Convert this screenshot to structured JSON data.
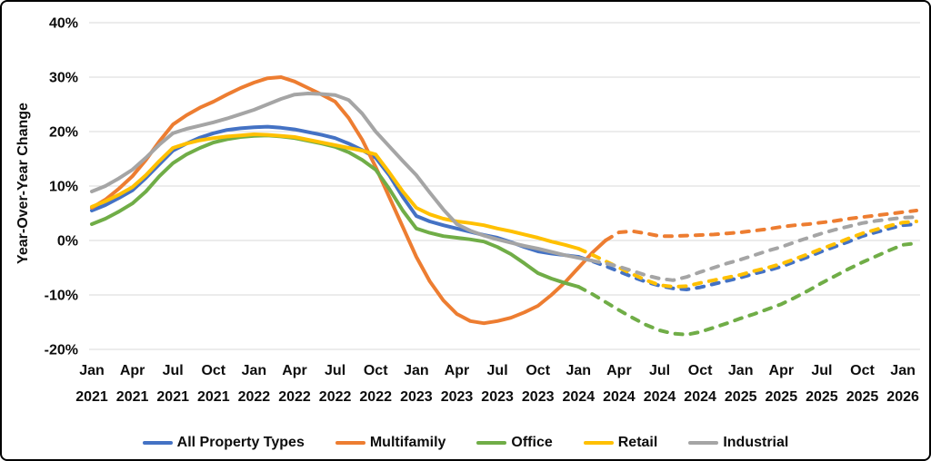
{
  "chart_data": {
    "type": "line",
    "title": "",
    "ylabel": "Year-Over-Year Change",
    "ylim": [
      -20,
      40
    ],
    "grid": "horizontal-only",
    "legend_position": "bottom",
    "ytick_values": [
      40,
      30,
      20,
      10,
      0,
      -10,
      -20
    ],
    "ytick_labels": [
      "40%",
      "30%",
      "20%",
      "10%",
      "0%",
      "-10%",
      "-20%"
    ],
    "xticks": [
      {
        "month": "Jan",
        "year": "2021"
      },
      {
        "month": "Apr",
        "year": "2021"
      },
      {
        "month": "Jul",
        "year": "2021"
      },
      {
        "month": "Oct",
        "year": "2021"
      },
      {
        "month": "Jan",
        "year": "2022"
      },
      {
        "month": "Apr",
        "year": "2022"
      },
      {
        "month": "Jul",
        "year": "2022"
      },
      {
        "month": "Oct",
        "year": "2022"
      },
      {
        "month": "Jan",
        "year": "2023"
      },
      {
        "month": "Apr",
        "year": "2023"
      },
      {
        "month": "Jul",
        "year": "2023"
      },
      {
        "month": "Oct",
        "year": "2023"
      },
      {
        "month": "Jan",
        "year": "2024"
      },
      {
        "month": "Apr",
        "year": "2024"
      },
      {
        "month": "Jul",
        "year": "2024"
      },
      {
        "month": "Oct",
        "year": "2024"
      },
      {
        "month": "Jan",
        "year": "2025"
      },
      {
        "month": "Apr",
        "year": "2025"
      },
      {
        "month": "Jul",
        "year": "2025"
      },
      {
        "month": "Oct",
        "year": "2025"
      },
      {
        "month": "Jan",
        "year": "2026"
      }
    ],
    "x": [
      "2021-01",
      "2021-02",
      "2021-03",
      "2021-04",
      "2021-05",
      "2021-06",
      "2021-07",
      "2021-08",
      "2021-09",
      "2021-10",
      "2021-11",
      "2021-12",
      "2022-01",
      "2022-02",
      "2022-03",
      "2022-04",
      "2022-05",
      "2022-06",
      "2022-07",
      "2022-08",
      "2022-09",
      "2022-10",
      "2022-11",
      "2022-12",
      "2023-01",
      "2023-02",
      "2023-03",
      "2023-04",
      "2023-05",
      "2023-06",
      "2023-07",
      "2023-08",
      "2023-09",
      "2023-10",
      "2023-11",
      "2023-12",
      "2024-01",
      "2024-02",
      "2024-03",
      "2024-04",
      "2024-05",
      "2024-06",
      "2024-07",
      "2024-08",
      "2024-09",
      "2024-10",
      "2024-11",
      "2024-12",
      "2025-01",
      "2025-02",
      "2025-03",
      "2025-04",
      "2025-05",
      "2025-06",
      "2025-07",
      "2025-08",
      "2025-09",
      "2025-10",
      "2025-11",
      "2025-12",
      "2026-01",
      "2026-02"
    ],
    "series": [
      {
        "name": "All Property Types",
        "color": "#4472C4",
        "solid_until_index": 36,
        "values": [
          5.5,
          6.5,
          7.8,
          9.2,
          11.5,
          14,
          16.5,
          17.8,
          18.9,
          19.7,
          20.3,
          20.6,
          20.8,
          20.9,
          20.7,
          20.4,
          19.9,
          19.4,
          18.8,
          17.8,
          16.6,
          15.2,
          12,
          8,
          4.5,
          3.5,
          2.8,
          2.2,
          1.6,
          1,
          0.5,
          -0.3,
          -1.2,
          -2,
          -2.4,
          -2.7,
          -3,
          -3.8,
          -4.7,
          -5.7,
          -6.7,
          -7.6,
          -8.3,
          -8.8,
          -9,
          -8.6,
          -8,
          -7.4,
          -6.8,
          -6.1,
          -5.5,
          -4.8,
          -3.9,
          -3,
          -2,
          -1.1,
          -0.2,
          0.8,
          1.5,
          2.2,
          2.8,
          3
        ]
      },
      {
        "name": "Multifamily",
        "color": "#ED7D31",
        "solid_until_index": 38,
        "values": [
          6,
          7.5,
          9.5,
          11.8,
          14.8,
          18.2,
          21.3,
          23,
          24.4,
          25.5,
          26.8,
          28,
          29,
          29.8,
          30,
          29.2,
          28,
          26.8,
          25.5,
          22.5,
          18.5,
          13.5,
          8,
          2.5,
          -3,
          -7.5,
          -11,
          -13.5,
          -14.8,
          -15.2,
          -14.8,
          -14.2,
          -13.2,
          -12,
          -10,
          -7.7,
          -5,
          -2.3,
          0,
          1.5,
          1.7,
          1.3,
          0.8,
          0.8,
          0.9,
          1,
          1.1,
          1.3,
          1.5,
          1.8,
          2.1,
          2.5,
          2.8,
          3,
          3.3,
          3.6,
          4,
          4.3,
          4.6,
          4.9,
          5.2,
          5.5
        ]
      },
      {
        "name": "Office",
        "color": "#70AD47",
        "solid_until_index": 36,
        "values": [
          3,
          4,
          5.3,
          6.8,
          9,
          11.8,
          14.2,
          15.8,
          17,
          18,
          18.6,
          19,
          19.2,
          19.3,
          19.1,
          18.8,
          18.3,
          17.8,
          17.2,
          16.2,
          14.8,
          13,
          9.5,
          5.5,
          2.2,
          1.4,
          0.8,
          0.5,
          0.2,
          -0.2,
          -1.2,
          -2.5,
          -4.2,
          -6,
          -7,
          -7.8,
          -8.5,
          -9.8,
          -11.3,
          -12.8,
          -14.2,
          -15.5,
          -16.5,
          -17.1,
          -17.3,
          -16.8,
          -16,
          -15.2,
          -14.3,
          -13.5,
          -12.6,
          -11.7,
          -10.5,
          -9.2,
          -7.8,
          -6.5,
          -5.2,
          -4,
          -2.9,
          -1.8,
          -0.8,
          -0.5
        ]
      },
      {
        "name": "Retail",
        "color": "#FFC000",
        "solid_until_index": 36,
        "values": [
          6.2,
          7.2,
          8.4,
          9.8,
          12,
          14.6,
          17,
          17.8,
          18.4,
          18.8,
          19.1,
          19.3,
          19.5,
          19.4,
          19.2,
          19,
          18.5,
          18,
          17.5,
          17,
          16.5,
          15.8,
          12.5,
          9,
          6,
          4.8,
          4,
          3.5,
          3.2,
          2.8,
          2.2,
          1.7,
          1.1,
          0.5,
          -0.2,
          -0.8,
          -1.5,
          -2.6,
          -3.8,
          -5,
          -6.2,
          -7.3,
          -8.2,
          -8.5,
          -8.4,
          -7.8,
          -7.3,
          -6.8,
          -6.3,
          -5.6,
          -5,
          -4.3,
          -3.4,
          -2.5,
          -1.5,
          -0.6,
          0.4,
          1.3,
          2,
          2.7,
          3.3,
          3.5
        ]
      },
      {
        "name": "Industrial",
        "color": "#A5A5A5",
        "solid_until_index": 37,
        "values": [
          9,
          10,
          11.4,
          13,
          15.2,
          17.6,
          19.7,
          20.5,
          21.1,
          21.7,
          22.4,
          23.2,
          24,
          25,
          26,
          26.8,
          27,
          26.9,
          26.7,
          25.8,
          23.3,
          20,
          17.3,
          14.6,
          12,
          8.8,
          5.7,
          3,
          1.8,
          0.9,
          0.2,
          -0.4,
          -1,
          -1.5,
          -2.1,
          -2.7,
          -3.2,
          -3.7,
          -4.2,
          -4.8,
          -5.6,
          -6.4,
          -7,
          -7.3,
          -6.7,
          -5.8,
          -5,
          -4.2,
          -3.5,
          -2.7,
          -1.9,
          -1.2,
          -0.3,
          0.5,
          1.3,
          2,
          2.6,
          3.2,
          3.6,
          3.9,
          4.2,
          4.3
        ]
      }
    ]
  },
  "style": {
    "gridline_color": "#D9D9D9",
    "text_color": "#0d0d0d",
    "background_color": "#FFFFFF",
    "border_color": "#000000"
  }
}
